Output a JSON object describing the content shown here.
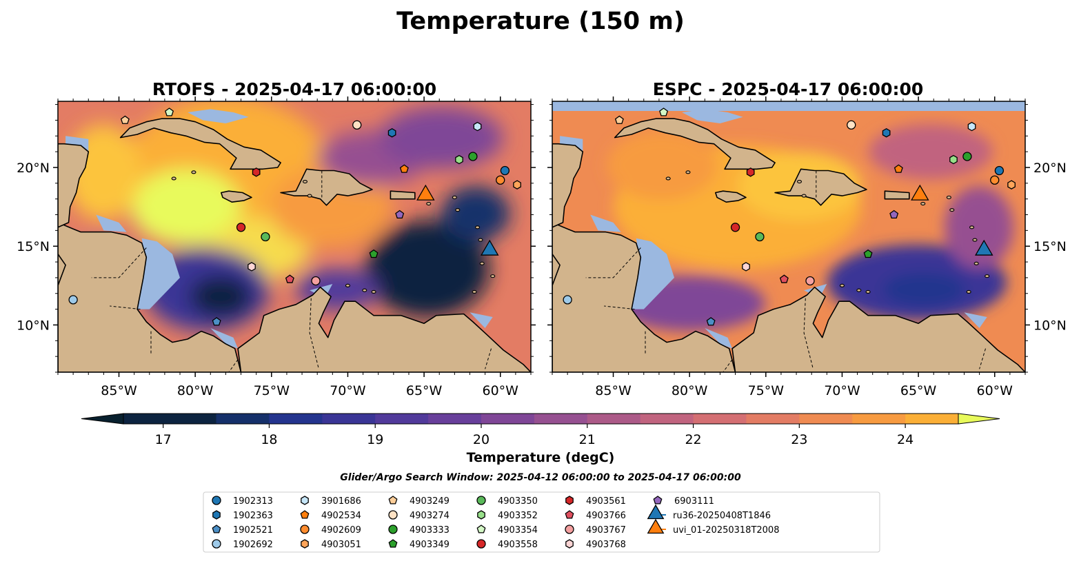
{
  "figure": {
    "title": "Temperature (150 m)",
    "search_window": "Glider/Argo Search Window: 2025-04-12 06:00:00 to 2025-04-17 06:00:00"
  },
  "colors": {
    "land": "#d2b48c",
    "shallow_water": "#9bb8e0",
    "coastline": "#000000",
    "frame": "#000000"
  },
  "chart_data": [
    {
      "type": "heatmap",
      "title": "RTOFS - 2025-04-17 06:00:00",
      "xlim": [
        -89,
        -58
      ],
      "ylim": [
        7,
        24.2
      ],
      "xticks": [
        -85,
        -80,
        -75,
        -70,
        -65,
        -60
      ],
      "xtick_labels": [
        "85°W",
        "80°W",
        "75°W",
        "70°W",
        "65°W",
        "60°W"
      ],
      "yticks": [
        10,
        15,
        20
      ],
      "ytick_labels": [
        "10°N",
        "15°N",
        "20°N"
      ],
      "ytick_side": "left",
      "field_summary": "warm (22-24 degC) over western Caribbean and around Jamaica; cold pool (17-18 degC) east of 70°W near 12-17°N and over Nicaraguan Rise"
    },
    {
      "type": "heatmap",
      "title": "ESPC - 2025-04-17 06:00:00",
      "xlim": [
        -89,
        -58
      ],
      "ylim": [
        7,
        24.2
      ],
      "xticks": [
        -85,
        -80,
        -75,
        -70,
        -65,
        -60
      ],
      "xtick_labels": [
        "85°W",
        "80°W",
        "75°W",
        "70°W",
        "65°W",
        "60°W"
      ],
      "yticks": [
        10,
        15,
        20
      ],
      "ytick_labels": [
        "10°N",
        "15°N",
        "20°N"
      ],
      "ytick_side": "right",
      "field_summary": "broadly warm (22-23 degC) central basin; cooler (18-19 degC) southeast basin"
    }
  ],
  "colorbar": {
    "label": "Temperature (degC)",
    "min": 16.625,
    "max": 24.5,
    "step": 0.5,
    "extend": "both",
    "ticks": [
      17,
      18,
      19,
      20,
      21,
      22,
      23,
      24
    ],
    "tick_labels": [
      "17",
      "18",
      "19",
      "20",
      "21",
      "22",
      "23",
      "24"
    ],
    "colors": [
      "#0c2340",
      "#15306a",
      "#24348e",
      "#3a3596",
      "#513a9b",
      "#683f9b",
      "#7f4697",
      "#965091",
      "#ac5a88",
      "#c1647f",
      "#d46f73",
      "#e37c64",
      "#ef8b52",
      "#f79b41",
      "#fbaf37",
      "#fcc43c",
      "#f6dc4e"
    ],
    "under_color": "#08202e",
    "over_color": "#e8fa5b"
  },
  "platforms": [
    {
      "id": "1902313",
      "marker": "circle",
      "color": "#1f77b4",
      "lon": -59.7,
      "lat": 19.8
    },
    {
      "id": "1902363",
      "marker": "hexagon",
      "color": "#1f77b4",
      "lon": -67.1,
      "lat": 22.2
    },
    {
      "id": "1902521",
      "marker": "pentagon",
      "color": "#4c8fc6",
      "lon": -78.6,
      "lat": 10.2
    },
    {
      "id": "1902692",
      "marker": "circle",
      "color": "#9ecae9",
      "lon": -88.0,
      "lat": 11.6
    },
    {
      "id": "3901686",
      "marker": "hexagon",
      "color": "#c6e6f8",
      "lon": -61.5,
      "lat": 22.6
    },
    {
      "id": "4902534",
      "marker": "pentagon",
      "color": "#ff7f0e",
      "lon": -66.3,
      "lat": 19.9
    },
    {
      "id": "4902609",
      "marker": "circle",
      "color": "#ff8c2e",
      "lon": -60.0,
      "lat": 19.2
    },
    {
      "id": "4903051",
      "marker": "hexagon",
      "color": "#ffa55a",
      "lon": -58.9,
      "lat": 18.9
    },
    {
      "id": "4903249",
      "marker": "pentagon",
      "color": "#ffcf9a",
      "lon": -84.6,
      "lat": 23.0
    },
    {
      "id": "4903274",
      "marker": "circle",
      "color": "#ffe2c4",
      "lon": -69.4,
      "lat": 22.7
    },
    {
      "id": "4903333",
      "marker": "circle",
      "color": "#2ca02c",
      "lon": -61.8,
      "lat": 20.7
    },
    {
      "id": "4903349",
      "marker": "pentagon",
      "color": "#2ca02c",
      "lon": -68.3,
      "lat": 14.5
    },
    {
      "id": "4903350",
      "marker": "circle",
      "color": "#5ab95a",
      "lon": -75.4,
      "lat": 15.6
    },
    {
      "id": "4903352",
      "marker": "hexagon",
      "color": "#98df8a",
      "lon": -62.7,
      "lat": 20.5
    },
    {
      "id": "4903354",
      "marker": "pentagon",
      "color": "#d4f7c6",
      "lon": -81.7,
      "lat": 23.5
    },
    {
      "id": "4903558",
      "marker": "circle",
      "color": "#d62728",
      "lon": -77.0,
      "lat": 16.2
    },
    {
      "id": "4903561",
      "marker": "hexagon",
      "color": "#d62728",
      "lon": -76.0,
      "lat": 19.7
    },
    {
      "id": "4903766",
      "marker": "pentagon",
      "color": "#e04f5f",
      "lon": -73.8,
      "lat": 12.9
    },
    {
      "id": "4903767",
      "marker": "circle",
      "color": "#f4a0a0",
      "lon": -72.1,
      "lat": 12.8
    },
    {
      "id": "4903768",
      "marker": "hexagon",
      "color": "#fcd5d5",
      "lon": -76.3,
      "lat": 13.7
    },
    {
      "id": "6903111",
      "marker": "pentagon",
      "color": "#9467bd",
      "lon": -66.6,
      "lat": 17.0
    }
  ],
  "gliders": [
    {
      "id": "ru36-20250408T1846",
      "marker": "triangle",
      "color": "#1f77b4",
      "lon": -60.7,
      "lat": 14.7
    },
    {
      "id": "uvi_01-20250318T2008",
      "marker": "triangle",
      "color": "#ff7f0e",
      "lon": -64.9,
      "lat": 18.2
    }
  ]
}
